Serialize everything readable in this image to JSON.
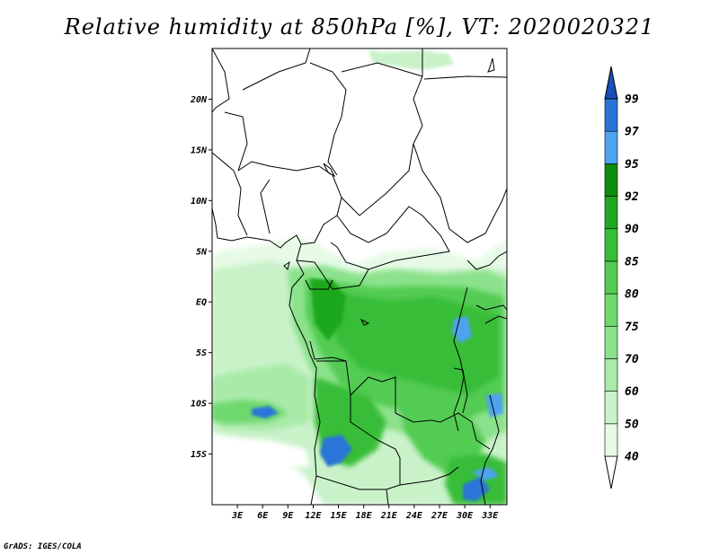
{
  "title": "Relative humidity at 850hPa [%], VT: 2020020321",
  "footer": "GrADS: IGES/COLA",
  "map": {
    "lon_range": [
      0,
      35
    ],
    "lat_range": [
      -20,
      25
    ],
    "lat_ticks": [
      {
        "value": 20,
        "label": "20N"
      },
      {
        "value": 15,
        "label": "15N"
      },
      {
        "value": 10,
        "label": "10N"
      },
      {
        "value": 5,
        "label": "5N"
      },
      {
        "value": 0,
        "label": "EQ"
      },
      {
        "value": -5,
        "label": "5S"
      },
      {
        "value": -10,
        "label": "10S"
      },
      {
        "value": -15,
        "label": "15S"
      }
    ],
    "lon_ticks": [
      {
        "value": 3,
        "label": "3E"
      },
      {
        "value": 6,
        "label": "6E"
      },
      {
        "value": 9,
        "label": "9E"
      },
      {
        "value": 12,
        "label": "12E"
      },
      {
        "value": 15,
        "label": "15E"
      },
      {
        "value": 18,
        "label": "18E"
      },
      {
        "value": 21,
        "label": "21E"
      },
      {
        "value": 24,
        "label": "24E"
      },
      {
        "value": 27,
        "label": "27E"
      },
      {
        "value": 30,
        "label": "30E"
      },
      {
        "value": 33,
        "label": "33E"
      }
    ]
  },
  "legend": {
    "levels": [
      "40",
      "50",
      "60",
      "70",
      "75",
      "80",
      "85",
      "90",
      "92",
      "95",
      "97",
      "99"
    ],
    "colors": [
      "#ffffff",
      "#e6fae6",
      "#c9f2c9",
      "#a9eaa9",
      "#8ce28c",
      "#6ed86e",
      "#52cc52",
      "#38bd38",
      "#1fa81f",
      "#0e8c0e",
      "#4da3ee",
      "#2a74d8",
      "#1a4fb8"
    ]
  },
  "colors": {
    "frame": "#000000",
    "land_border": "#000000"
  }
}
